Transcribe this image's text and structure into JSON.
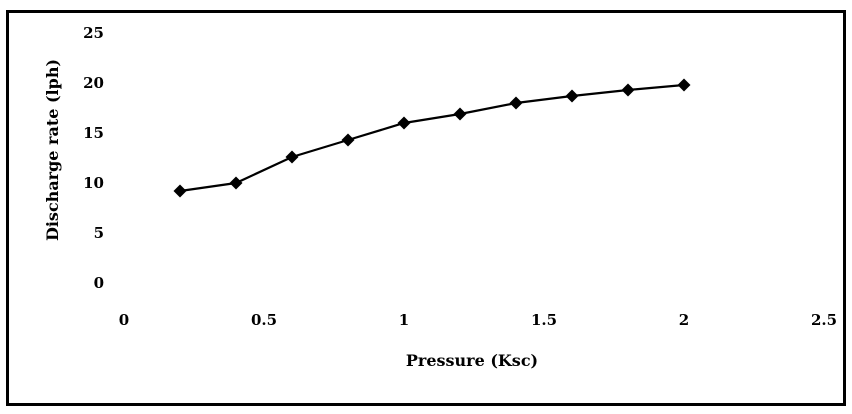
{
  "chart_data": {
    "type": "line",
    "title": "",
    "xlabel": "Pressure (Ksc)",
    "ylabel": "Discharge rate (lph)",
    "xlim": [
      0,
      2.5
    ],
    "ylim": [
      0,
      25
    ],
    "x_ticks": [
      "0",
      "0.5",
      "1",
      "1.5",
      "2",
      "2.5"
    ],
    "y_ticks": [
      "0",
      "5",
      "10",
      "15",
      "20",
      "25"
    ],
    "grid": false,
    "legend": "none",
    "marker": "diamond",
    "line_color": "#000000",
    "series": [
      {
        "x": [
          0.2,
          0.4,
          0.6,
          0.8,
          1.0,
          1.2,
          1.4,
          1.6,
          1.8,
          2.0
        ],
        "y": [
          9.2,
          10.0,
          12.6,
          14.3,
          16.0,
          16.9,
          18.0,
          18.7,
          19.3,
          19.8
        ]
      }
    ]
  }
}
